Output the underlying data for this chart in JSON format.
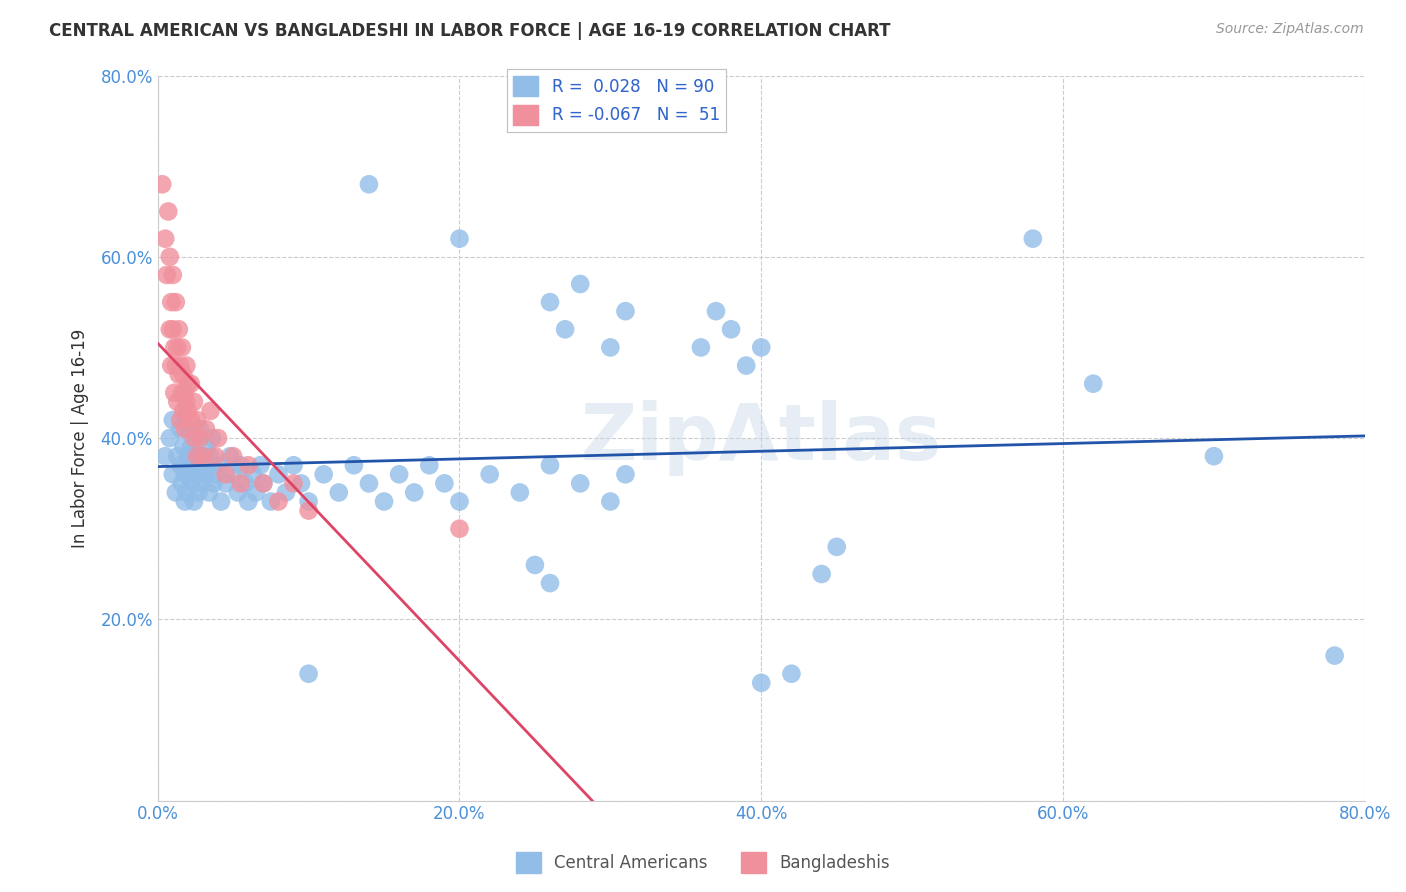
{
  "title": "CENTRAL AMERICAN VS BANGLADESHI IN LABOR FORCE | AGE 16-19 CORRELATION CHART",
  "source": "Source: ZipAtlas.com",
  "ylabel": "In Labor Force | Age 16-19",
  "xlim": [
    0,
    0.8
  ],
  "ylim": [
    0,
    0.8
  ],
  "xticks": [
    0.0,
    0.2,
    0.4,
    0.6,
    0.8
  ],
  "yticks": [
    0.0,
    0.2,
    0.4,
    0.6,
    0.8
  ],
  "xticklabels": [
    "0.0%",
    "20.0%",
    "40.0%",
    "60.0%",
    "80.0%"
  ],
  "yticklabels": [
    "",
    "20.0%",
    "40.0%",
    "60.0%",
    "80.0%"
  ],
  "background_color": "#ffffff",
  "grid_color": "#cccccc",
  "watermark": "ZipAtlas",
  "blue_color": "#92bde8",
  "pink_color": "#f0909c",
  "blue_line_color": "#2255aa",
  "pink_line_color": "#dd4466",
  "blue_scatter": [
    [
      0.005,
      0.38
    ],
    [
      0.008,
      0.4
    ],
    [
      0.01,
      0.36
    ],
    [
      0.01,
      0.42
    ],
    [
      0.012,
      0.34
    ],
    [
      0.013,
      0.38
    ],
    [
      0.015,
      0.37
    ],
    [
      0.015,
      0.41
    ],
    [
      0.016,
      0.35
    ],
    [
      0.017,
      0.39
    ],
    [
      0.018,
      0.33
    ],
    [
      0.018,
      0.36
    ],
    [
      0.019,
      0.34
    ],
    [
      0.02,
      0.38
    ],
    [
      0.02,
      0.41
    ],
    [
      0.021,
      0.36
    ],
    [
      0.022,
      0.35
    ],
    [
      0.022,
      0.39
    ],
    [
      0.023,
      0.37
    ],
    [
      0.024,
      0.33
    ],
    [
      0.025,
      0.38
    ],
    [
      0.025,
      0.4
    ],
    [
      0.026,
      0.36
    ],
    [
      0.027,
      0.34
    ],
    [
      0.028,
      0.37
    ],
    [
      0.028,
      0.41
    ],
    [
      0.029,
      0.35
    ],
    [
      0.03,
      0.38
    ],
    [
      0.031,
      0.36
    ],
    [
      0.032,
      0.39
    ],
    [
      0.033,
      0.37
    ],
    [
      0.034,
      0.34
    ],
    [
      0.035,
      0.38
    ],
    [
      0.036,
      0.4
    ],
    [
      0.037,
      0.35
    ],
    [
      0.038,
      0.36
    ],
    [
      0.04,
      0.37
    ],
    [
      0.042,
      0.33
    ],
    [
      0.045,
      0.35
    ],
    [
      0.048,
      0.38
    ],
    [
      0.05,
      0.36
    ],
    [
      0.053,
      0.34
    ],
    [
      0.055,
      0.37
    ],
    [
      0.058,
      0.35
    ],
    [
      0.06,
      0.33
    ],
    [
      0.063,
      0.36
    ],
    [
      0.065,
      0.34
    ],
    [
      0.068,
      0.37
    ],
    [
      0.07,
      0.35
    ],
    [
      0.075,
      0.33
    ],
    [
      0.08,
      0.36
    ],
    [
      0.085,
      0.34
    ],
    [
      0.09,
      0.37
    ],
    [
      0.095,
      0.35
    ],
    [
      0.1,
      0.33
    ],
    [
      0.11,
      0.36
    ],
    [
      0.12,
      0.34
    ],
    [
      0.13,
      0.37
    ],
    [
      0.14,
      0.35
    ],
    [
      0.15,
      0.33
    ],
    [
      0.16,
      0.36
    ],
    [
      0.17,
      0.34
    ],
    [
      0.18,
      0.37
    ],
    [
      0.19,
      0.35
    ],
    [
      0.2,
      0.33
    ],
    [
      0.22,
      0.36
    ],
    [
      0.24,
      0.34
    ],
    [
      0.26,
      0.37
    ],
    [
      0.28,
      0.35
    ],
    [
      0.3,
      0.33
    ],
    [
      0.31,
      0.36
    ],
    [
      0.14,
      0.68
    ],
    [
      0.2,
      0.62
    ],
    [
      0.26,
      0.55
    ],
    [
      0.27,
      0.52
    ],
    [
      0.28,
      0.57
    ],
    [
      0.3,
      0.5
    ],
    [
      0.31,
      0.54
    ],
    [
      0.36,
      0.5
    ],
    [
      0.37,
      0.54
    ],
    [
      0.38,
      0.52
    ],
    [
      0.39,
      0.48
    ],
    [
      0.4,
      0.5
    ],
    [
      0.44,
      0.25
    ],
    [
      0.45,
      0.28
    ],
    [
      0.58,
      0.62
    ],
    [
      0.62,
      0.46
    ],
    [
      0.7,
      0.38
    ],
    [
      0.25,
      0.26
    ],
    [
      0.26,
      0.24
    ],
    [
      0.78,
      0.16
    ],
    [
      0.4,
      0.13
    ],
    [
      0.42,
      0.14
    ],
    [
      0.1,
      0.14
    ]
  ],
  "pink_scatter": [
    [
      0.003,
      0.68
    ],
    [
      0.005,
      0.62
    ],
    [
      0.006,
      0.58
    ],
    [
      0.007,
      0.65
    ],
    [
      0.008,
      0.52
    ],
    [
      0.008,
      0.6
    ],
    [
      0.009,
      0.55
    ],
    [
      0.009,
      0.48
    ],
    [
      0.01,
      0.52
    ],
    [
      0.01,
      0.58
    ],
    [
      0.011,
      0.45
    ],
    [
      0.011,
      0.5
    ],
    [
      0.012,
      0.48
    ],
    [
      0.012,
      0.55
    ],
    [
      0.013,
      0.44
    ],
    [
      0.013,
      0.5
    ],
    [
      0.014,
      0.47
    ],
    [
      0.014,
      0.52
    ],
    [
      0.015,
      0.42
    ],
    [
      0.015,
      0.48
    ],
    [
      0.016,
      0.45
    ],
    [
      0.016,
      0.5
    ],
    [
      0.017,
      0.43
    ],
    [
      0.017,
      0.47
    ],
    [
      0.018,
      0.41
    ],
    [
      0.018,
      0.45
    ],
    [
      0.019,
      0.44
    ],
    [
      0.019,
      0.48
    ],
    [
      0.02,
      0.43
    ],
    [
      0.02,
      0.46
    ],
    [
      0.022,
      0.42
    ],
    [
      0.022,
      0.46
    ],
    [
      0.024,
      0.4
    ],
    [
      0.024,
      0.44
    ],
    [
      0.026,
      0.42
    ],
    [
      0.026,
      0.38
    ],
    [
      0.028,
      0.4
    ],
    [
      0.03,
      0.38
    ],
    [
      0.032,
      0.41
    ],
    [
      0.035,
      0.43
    ],
    [
      0.038,
      0.38
    ],
    [
      0.04,
      0.4
    ],
    [
      0.045,
      0.36
    ],
    [
      0.05,
      0.38
    ],
    [
      0.055,
      0.35
    ],
    [
      0.06,
      0.37
    ],
    [
      0.07,
      0.35
    ],
    [
      0.08,
      0.33
    ],
    [
      0.09,
      0.35
    ],
    [
      0.1,
      0.32
    ],
    [
      0.2,
      0.3
    ]
  ]
}
